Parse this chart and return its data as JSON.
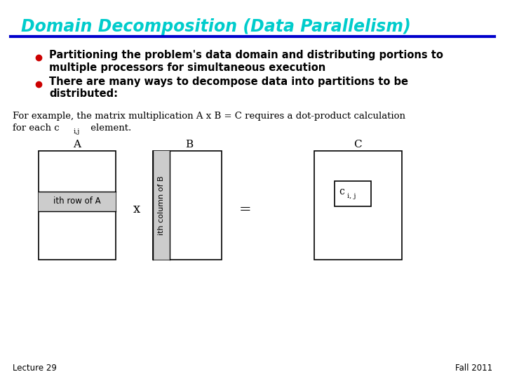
{
  "title": "Domain Decomposition (Data Parallelism)",
  "title_color": "#00CCCC",
  "title_underline_color": "#0000CC",
  "bg_color": "#FFFFFF",
  "bullet_color": "#CC0000",
  "bullet1_line1": "Partitioning the problem's data domain and distributing portions to",
  "bullet1_line2": "multiple processors for simultaneous execution",
  "bullet2_line1": "There are many ways to decompose data into partitions to be",
  "bullet2_line2": "distributed:",
  "ex_line1": "For example, the matrix multiplication A x B = C requires a dot-product calculation",
  "ex_line2_pre": "for each c",
  "ex_line2_sub": "i,j",
  "ex_line2_post": " element.",
  "label_A": "A",
  "label_B": "B",
  "label_C": "C",
  "ith_row_label": "ith row of A",
  "ith_col_label": "ith column of B",
  "cij_label": "c",
  "cij_sub": "i, j",
  "times_label": "x",
  "equals_label": "=",
  "footer_left": "Lecture 29",
  "footer_right": "Fall 2011",
  "text_color": "#000000",
  "box_edge_color": "#000000",
  "gray_color": "#CCCCCC"
}
